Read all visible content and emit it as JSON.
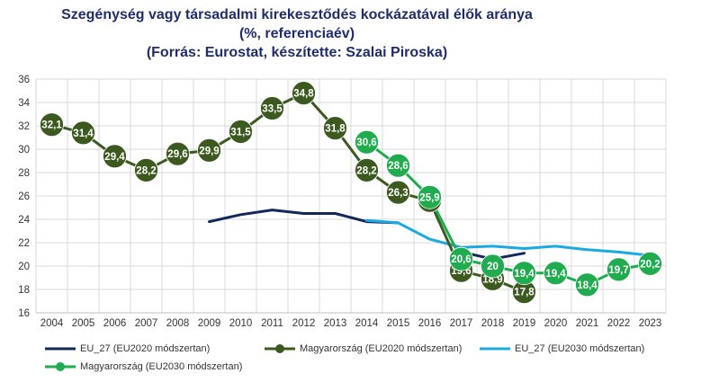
{
  "title": {
    "line1": "Szegénység vagy társadalmi kirekesztődés kockázatával élők aránya",
    "line2": "(%, referenciaév)",
    "line3": "(Forrás: Eurostat, készítette: Szalai Piroska)"
  },
  "chart_data": {
    "type": "line",
    "title": "Szegénység vagy társadalmi kirekesztődés kockázatával élők aránya",
    "categories": [
      "2004",
      "2005",
      "2006",
      "2007",
      "2008",
      "2009",
      "2010",
      "2011",
      "2012",
      "2013",
      "2014",
      "2015",
      "2016",
      "2017",
      "2018",
      "2019",
      "2020",
      "2021",
      "2022",
      "2023"
    ],
    "y_ticks": [
      "16",
      "18",
      "20",
      "22",
      "24",
      "26",
      "28",
      "30",
      "32",
      "34",
      "36"
    ],
    "ylim": [
      16,
      36
    ],
    "grid": true,
    "legend_position": "bottom",
    "series": [
      {
        "name": "EU_27 (EU2020 módszertan)",
        "color": "#13285a",
        "markers": false,
        "values": [
          null,
          null,
          null,
          null,
          null,
          23.8,
          24.4,
          24.8,
          24.5,
          24.5,
          23.8,
          23.7,
          null,
          21.2,
          20.6,
          21.1,
          null,
          null,
          null,
          null
        ]
      },
      {
        "name": "Magyarország (EU2020 módszertan)",
        "color": "#3c5a1f",
        "markers": true,
        "values": [
          32.1,
          31.4,
          29.4,
          28.2,
          29.6,
          29.9,
          31.5,
          33.5,
          34.8,
          31.8,
          28.2,
          26.3,
          25.6,
          19.6,
          18.9,
          17.8,
          null,
          null,
          null,
          null
        ],
        "labels": [
          "32,1",
          "31,4",
          "29,4",
          "28,2",
          "29,6",
          "29,9",
          "31,5",
          "33,5",
          "34,8",
          "31,8",
          "28,2",
          "26,3",
          "25,6",
          "19,6",
          "18,9",
          "17,8",
          null,
          null,
          null,
          null
        ]
      },
      {
        "name": "EU_27 (EU2030 módszertan)",
        "color": "#1aa9e1",
        "markers": false,
        "values": [
          null,
          null,
          null,
          null,
          null,
          null,
          null,
          null,
          null,
          null,
          23.9,
          23.7,
          22.3,
          21.6,
          21.7,
          21.5,
          21.7,
          21.4,
          21.2,
          20.9
        ]
      },
      {
        "name": "Magyarország (EU2030 módszertan)",
        "color": "#1fab4e",
        "markers": true,
        "values": [
          null,
          null,
          null,
          null,
          null,
          null,
          null,
          null,
          null,
          null,
          30.6,
          28.6,
          25.9,
          20.6,
          20.0,
          19.4,
          19.4,
          18.4,
          19.7,
          20.2
        ],
        "labels": [
          null,
          null,
          null,
          null,
          null,
          null,
          null,
          null,
          null,
          null,
          "30,6",
          "28,6",
          "25,9",
          "20,6",
          "20",
          "19,4",
          "19,4",
          "18,4",
          "19,7",
          "20,2"
        ]
      }
    ]
  }
}
